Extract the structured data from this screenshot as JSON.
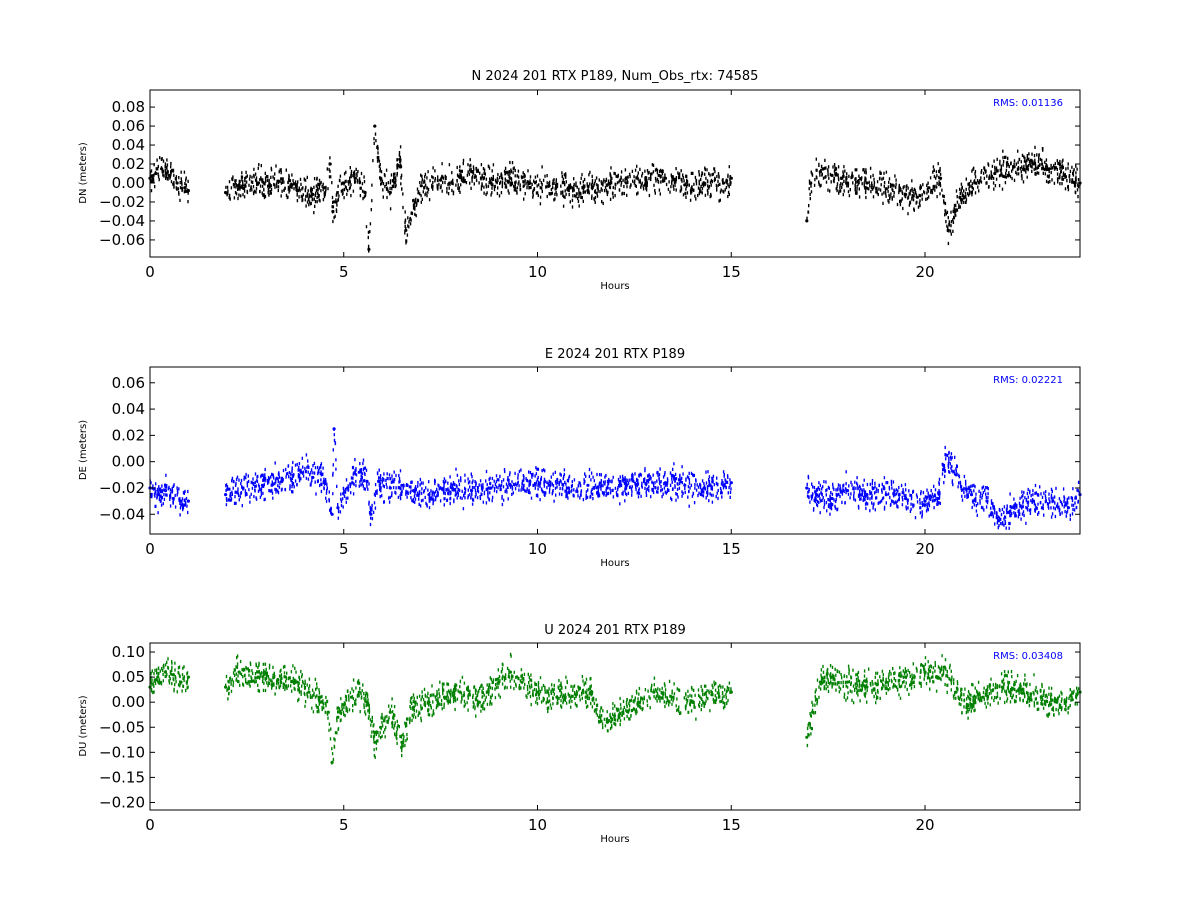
{
  "chart_data": [
    {
      "type": "scatter",
      "title": "N 2024 201 RTX  P189, Num_Obs_rtx: 74585",
      "xlabel": "Hours",
      "ylabel": "DN (meters)",
      "xlim": [
        0,
        24
      ],
      "ylim": [
        -0.078,
        0.098
      ],
      "xticks": [
        0,
        5,
        10,
        15,
        20
      ],
      "yticks": [
        -0.06,
        -0.04,
        -0.02,
        0.0,
        0.02,
        0.04,
        0.06,
        0.08
      ],
      "ytick_labels": [
        "−0.06",
        "−0.04",
        "−0.02",
        "0.00",
        "0.02",
        "0.04",
        "0.06",
        "0.08"
      ],
      "grid": false,
      "color": "#000000",
      "annotation": "RMS:  0.01136",
      "annotation_color": "#0000ff",
      "gaps": [
        [
          0.99,
          1.95
        ],
        [
          15.0,
          16.95
        ]
      ],
      "series": [
        {
          "x": [
            0.0,
            0.15,
            0.3,
            0.5,
            0.7,
            0.9,
            0.99,
            1.95,
            2.3,
            2.8,
            3.3,
            3.8,
            4.2,
            4.5,
            4.65,
            4.72,
            4.8,
            5.0,
            5.3,
            5.55,
            5.65,
            5.8,
            5.95,
            6.2,
            6.45,
            6.6,
            7.0,
            7.5,
            8.0,
            8.3,
            8.8,
            9.3,
            9.8,
            10.3,
            10.8,
            11.3,
            11.8,
            12.3,
            12.8,
            13.3,
            13.8,
            14.3,
            14.8,
            15.0,
            16.95,
            17.05,
            17.3,
            17.6,
            18.0,
            18.5,
            19.0,
            19.5,
            19.8,
            20.1,
            20.4,
            20.6,
            20.9,
            21.3,
            21.8,
            22.3,
            22.8,
            23.2,
            23.6,
            24.0
          ],
          "y": [
            0.005,
            0.01,
            0.015,
            0.008,
            0.0,
            -0.005,
            -0.008,
            -0.01,
            -0.002,
            0.0,
            0.002,
            -0.008,
            -0.012,
            -0.005,
            0.02,
            -0.03,
            -0.02,
            0.0,
            0.005,
            -0.01,
            -0.07,
            0.06,
            0.005,
            -0.01,
            0.025,
            -0.05,
            -0.003,
            0.003,
            0.006,
            0.012,
            0.0,
            0.005,
            0.0,
            -0.003,
            -0.005,
            -0.008,
            -0.002,
            0.0,
            0.003,
            0.005,
            -0.002,
            0.0,
            0.0,
            0.005,
            -0.04,
            0.0,
            0.012,
            0.008,
            0.0,
            0.0,
            -0.006,
            -0.012,
            -0.015,
            -0.005,
            0.005,
            -0.05,
            -0.015,
            0.0,
            0.01,
            0.017,
            0.02,
            0.015,
            0.008,
            0.0
          ]
        }
      ]
    },
    {
      "type": "scatter",
      "title": "E 2024 201 RTX  P189",
      "xlabel": "Hours",
      "ylabel": "DE (meters)",
      "xlim": [
        0,
        24
      ],
      "ylim": [
        -0.055,
        0.072
      ],
      "xticks": [
        0,
        5,
        10,
        15,
        20
      ],
      "yticks": [
        -0.04,
        -0.02,
        0.0,
        0.02,
        0.04,
        0.06
      ],
      "ytick_labels": [
        "−0.04",
        "−0.02",
        "0.00",
        "0.02",
        "0.04",
        "0.06"
      ],
      "grid": false,
      "color": "#0000ff",
      "annotation": "RMS:  0.02221",
      "annotation_color": "#0000ff",
      "gaps": [
        [
          0.99,
          1.95
        ],
        [
          15.0,
          16.95
        ]
      ],
      "series": [
        {
          "x": [
            0.0,
            0.2,
            0.4,
            0.6,
            0.8,
            0.99,
            1.95,
            2.4,
            2.9,
            3.4,
            3.9,
            4.2,
            4.5,
            4.7,
            4.75,
            4.85,
            5.1,
            5.4,
            5.6,
            5.7,
            5.9,
            6.2,
            6.5,
            6.8,
            7.2,
            7.8,
            8.3,
            8.8,
            9.3,
            9.8,
            10.3,
            10.8,
            11.3,
            11.8,
            12.3,
            12.8,
            13.3,
            13.8,
            14.3,
            14.8,
            15.0,
            16.95,
            17.2,
            17.6,
            18.0,
            18.5,
            19.0,
            19.5,
            20.0,
            20.35,
            20.55,
            20.8,
            21.2,
            21.6,
            21.9,
            22.3,
            22.8,
            23.3,
            23.7,
            24.0
          ],
          "y": [
            -0.02,
            -0.025,
            -0.022,
            -0.028,
            -0.03,
            -0.03,
            -0.025,
            -0.02,
            -0.018,
            -0.015,
            -0.008,
            -0.012,
            -0.015,
            -0.04,
            0.025,
            -0.035,
            -0.02,
            -0.008,
            -0.015,
            -0.04,
            -0.015,
            -0.02,
            -0.018,
            -0.022,
            -0.025,
            -0.02,
            -0.022,
            -0.02,
            -0.018,
            -0.015,
            -0.018,
            -0.02,
            -0.018,
            -0.02,
            -0.018,
            -0.017,
            -0.016,
            -0.018,
            -0.02,
            -0.018,
            -0.016,
            -0.02,
            -0.025,
            -0.028,
            -0.022,
            -0.025,
            -0.025,
            -0.028,
            -0.03,
            -0.028,
            0.005,
            -0.01,
            -0.025,
            -0.03,
            -0.045,
            -0.035,
            -0.03,
            -0.03,
            -0.035,
            -0.025
          ]
        }
      ]
    },
    {
      "type": "scatter",
      "title": "U 2024 201 RTX  P189",
      "xlabel": "Hours",
      "ylabel": "DU (meters)",
      "xlim": [
        0,
        24
      ],
      "ylim": [
        -0.215,
        0.118
      ],
      "xticks": [
        0,
        5,
        10,
        15,
        20
      ],
      "yticks": [
        -0.2,
        -0.15,
        -0.1,
        -0.05,
        0.0,
        0.05,
        0.1
      ],
      "ytick_labels": [
        "−0.20",
        "−0.15",
        "−0.10",
        "−0.05",
        "0.00",
        "0.05",
        "0.10"
      ],
      "grid": false,
      "color": "#008000",
      "annotation": "RMS:  0.03408",
      "annotation_color": "#0000ff",
      "gaps": [
        [
          0.99,
          1.95
        ],
        [
          15.0,
          16.95
        ]
      ],
      "series": [
        {
          "x": [
            0.0,
            0.2,
            0.4,
            0.6,
            0.8,
            0.99,
            1.95,
            2.3,
            2.8,
            3.3,
            3.8,
            4.1,
            4.4,
            4.6,
            4.7,
            4.85,
            5.0,
            5.2,
            5.4,
            5.6,
            5.8,
            5.95,
            6.2,
            6.5,
            6.8,
            7.2,
            7.6,
            8.0,
            8.5,
            9.0,
            9.3,
            9.6,
            10.0,
            10.5,
            11.0,
            11.4,
            11.6,
            11.8,
            12.2,
            12.6,
            13.0,
            13.5,
            14.0,
            14.5,
            15.0,
            16.95,
            17.1,
            17.3,
            17.6,
            18.0,
            18.5,
            19.0,
            19.5,
            20.0,
            20.3,
            20.5,
            20.8,
            21.1,
            21.5,
            22.0,
            22.5,
            23.0,
            23.4,
            23.8,
            24.0
          ],
          "y": [
            0.03,
            0.05,
            0.06,
            0.055,
            0.04,
            0.05,
            0.03,
            0.06,
            0.05,
            0.045,
            0.04,
            0.02,
            0.0,
            -0.02,
            -0.12,
            -0.03,
            -0.005,
            0.01,
            0.02,
            0.0,
            -0.08,
            -0.05,
            -0.02,
            -0.08,
            -0.01,
            0.0,
            0.01,
            0.02,
            0.0,
            0.04,
            0.06,
            0.04,
            0.02,
            0.01,
            0.015,
            0.02,
            -0.03,
            -0.04,
            -0.02,
            0.0,
            0.02,
            0.01,
            0.0,
            0.015,
            0.02,
            -0.07,
            -0.02,
            0.04,
            0.05,
            0.04,
            0.03,
            0.04,
            0.05,
            0.06,
            0.05,
            0.07,
            0.02,
            -0.005,
            0.01,
            0.03,
            0.025,
            0.01,
            0.0,
            0.005,
            0.02
          ]
        }
      ]
    }
  ]
}
